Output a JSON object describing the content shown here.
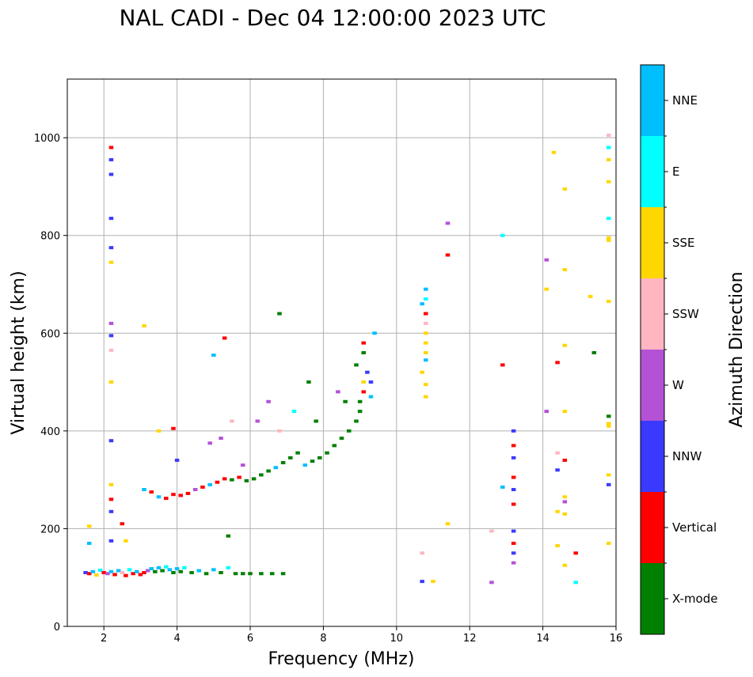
{
  "chart_data": {
    "type": "scatter",
    "title": "NAL CADI - Dec 04 12:00:00 2023 UTC",
    "xlabel": "Frequency (MHz)",
    "ylabel": "Virtual height (km)",
    "xlim": [
      1,
      16
    ],
    "ylim": [
      0,
      1120
    ],
    "xticks": [
      2,
      4,
      6,
      8,
      10,
      12,
      14,
      16
    ],
    "yticks": [
      0,
      200,
      400,
      600,
      800,
      1000
    ],
    "grid": true,
    "colorbar": {
      "title": "Azimuth Direction",
      "categories": [
        {
          "name": "X-mode",
          "color": "#008000"
        },
        {
          "name": "Vertical",
          "color": "#ff0000"
        },
        {
          "name": "NNW",
          "color": "#3a3aff"
        },
        {
          "name": "W",
          "color": "#b452d6"
        },
        {
          "name": "SSW",
          "color": "#ffb6c1"
        },
        {
          "name": "SSE",
          "color": "#ffd700"
        },
        {
          "name": "E",
          "color": "#00ffff"
        },
        {
          "name": "NNE",
          "color": "#00bfff"
        }
      ]
    },
    "points": [
      [
        1.5,
        110,
        "NNW"
      ],
      [
        1.6,
        108,
        "Vertical"
      ],
      [
        1.7,
        112,
        "NNE"
      ],
      [
        1.8,
        105,
        "SSE"
      ],
      [
        1.9,
        115,
        "E"
      ],
      [
        2.0,
        110,
        "Vertical"
      ],
      [
        2.1,
        108,
        "W"
      ],
      [
        2.2,
        112,
        "NNE"
      ],
      [
        2.3,
        106,
        "Vertical"
      ],
      [
        2.4,
        114,
        "NNE"
      ],
      [
        2.5,
        110,
        "SSW"
      ],
      [
        2.6,
        104,
        "Vertical"
      ],
      [
        2.7,
        116,
        "E"
      ],
      [
        2.8,
        108,
        "Vertical"
      ],
      [
        2.9,
        112,
        "NNE"
      ],
      [
        3.0,
        106,
        "Vertical"
      ],
      [
        3.1,
        110,
        "Vertical"
      ],
      [
        3.2,
        114,
        "W"
      ],
      [
        3.3,
        118,
        "NNE"
      ],
      [
        3.4,
        112,
        "X-mode"
      ],
      [
        3.5,
        120,
        "NNE"
      ],
      [
        3.6,
        114,
        "X-mode"
      ],
      [
        3.7,
        122,
        "E"
      ],
      [
        3.8,
        116,
        "NNE"
      ],
      [
        3.9,
        110,
        "X-mode"
      ],
      [
        4.0,
        118,
        "NNE"
      ],
      [
        4.1,
        112,
        "X-mode"
      ],
      [
        4.2,
        120,
        "E"
      ],
      [
        4.4,
        110,
        "X-mode"
      ],
      [
        4.6,
        114,
        "NNE"
      ],
      [
        4.8,
        108,
        "X-mode"
      ],
      [
        5.0,
        116,
        "NNE"
      ],
      [
        5.2,
        110,
        "X-mode"
      ],
      [
        5.4,
        120,
        "E"
      ],
      [
        5.6,
        108,
        "X-mode"
      ],
      [
        5.8,
        108,
        "X-mode"
      ],
      [
        6.0,
        108,
        "X-mode"
      ],
      [
        6.3,
        108,
        "X-mode"
      ],
      [
        6.6,
        108,
        "X-mode"
      ],
      [
        6.9,
        108,
        "X-mode"
      ],
      [
        2.6,
        175,
        "SSE"
      ],
      [
        1.6,
        205,
        "SSE"
      ],
      [
        2.5,
        210,
        "Vertical"
      ],
      [
        1.6,
        170,
        "NNE"
      ],
      [
        3.1,
        280,
        "NNE"
      ],
      [
        3.3,
        275,
        "Vertical"
      ],
      [
        3.5,
        265,
        "NNE"
      ],
      [
        3.7,
        262,
        "Vertical"
      ],
      [
        3.9,
        270,
        "Vertical"
      ],
      [
        4.1,
        268,
        "Vertical"
      ],
      [
        4.3,
        272,
        "Vertical"
      ],
      [
        4.5,
        280,
        "W"
      ],
      [
        4.7,
        285,
        "Vertical"
      ],
      [
        4.9,
        290,
        "NNE"
      ],
      [
        5.1,
        295,
        "Vertical"
      ],
      [
        5.3,
        302,
        "Vertical"
      ],
      [
        5.5,
        300,
        "X-mode"
      ],
      [
        5.7,
        305,
        "Vertical"
      ],
      [
        5.9,
        298,
        "X-mode"
      ],
      [
        6.1,
        302,
        "X-mode"
      ],
      [
        6.3,
        310,
        "X-mode"
      ],
      [
        6.5,
        318,
        "X-mode"
      ],
      [
        6.7,
        325,
        "NNE"
      ],
      [
        6.9,
        335,
        "X-mode"
      ],
      [
        7.1,
        345,
        "X-mode"
      ],
      [
        7.3,
        355,
        "X-mode"
      ],
      [
        7.5,
        330,
        "NNE"
      ],
      [
        7.7,
        338,
        "X-mode"
      ],
      [
        7.9,
        345,
        "X-mode"
      ],
      [
        8.1,
        355,
        "X-mode"
      ],
      [
        8.3,
        370,
        "X-mode"
      ],
      [
        8.5,
        385,
        "X-mode"
      ],
      [
        8.7,
        400,
        "X-mode"
      ],
      [
        8.9,
        420,
        "X-mode"
      ],
      [
        9.0,
        440,
        "X-mode"
      ],
      [
        9.0,
        460,
        "X-mode"
      ],
      [
        9.1,
        480,
        "Vertical"
      ],
      [
        9.1,
        500,
        "SSE"
      ],
      [
        9.2,
        520,
        "NNW"
      ],
      [
        9.1,
        560,
        "X-mode"
      ],
      [
        9.1,
        580,
        "Vertical"
      ],
      [
        9.3,
        470,
        "NNE"
      ],
      [
        9.3,
        500,
        "NNW"
      ],
      [
        3.5,
        400,
        "SSE"
      ],
      [
        3.9,
        405,
        "Vertical"
      ],
      [
        4.0,
        340,
        "NNW"
      ],
      [
        4.9,
        375,
        "W"
      ],
      [
        5.2,
        385,
        "W"
      ],
      [
        5.5,
        420,
        "SSW"
      ],
      [
        5.8,
        330,
        "W"
      ],
      [
        6.2,
        420,
        "W"
      ],
      [
        6.5,
        460,
        "W"
      ],
      [
        6.8,
        400,
        "SSW"
      ],
      [
        7.2,
        440,
        "E"
      ],
      [
        7.6,
        500,
        "X-mode"
      ],
      [
        7.8,
        420,
        "X-mode"
      ],
      [
        8.4,
        480,
        "W"
      ],
      [
        8.6,
        460,
        "X-mode"
      ],
      [
        8.9,
        535,
        "X-mode"
      ],
      [
        5.4,
        185,
        "X-mode"
      ],
      [
        5.0,
        555,
        "NNE"
      ],
      [
        5.3,
        590,
        "Vertical"
      ],
      [
        6.8,
        640,
        "X-mode"
      ],
      [
        3.1,
        615,
        "SSE"
      ],
      [
        9.4,
        600,
        "NNE"
      ],
      [
        2.2,
        980,
        "Vertical"
      ],
      [
        2.2,
        955,
        "NNW"
      ],
      [
        2.2,
        925,
        "NNW"
      ],
      [
        2.2,
        835,
        "NNW"
      ],
      [
        2.2,
        775,
        "NNW"
      ],
      [
        2.2,
        745,
        "SSE"
      ],
      [
        2.2,
        620,
        "W"
      ],
      [
        2.2,
        595,
        "NNW"
      ],
      [
        2.2,
        565,
        "SSW"
      ],
      [
        2.2,
        500,
        "SSE"
      ],
      [
        2.2,
        380,
        "NNW"
      ],
      [
        2.2,
        290,
        "SSE"
      ],
      [
        2.2,
        260,
        "Vertical"
      ],
      [
        2.2,
        235,
        "NNW"
      ],
      [
        2.2,
        175,
        "NNW"
      ],
      [
        10.8,
        690,
        "NNE"
      ],
      [
        10.8,
        670,
        "E"
      ],
      [
        10.8,
        640,
        "Vertical"
      ],
      [
        10.8,
        620,
        "SSW"
      ],
      [
        10.8,
        600,
        "SSE"
      ],
      [
        10.8,
        580,
        "SSE"
      ],
      [
        10.8,
        560,
        "SSE"
      ],
      [
        10.8,
        545,
        "NNE"
      ],
      [
        10.8,
        495,
        "SSE"
      ],
      [
        10.8,
        470,
        "SSE"
      ],
      [
        10.7,
        660,
        "NNE"
      ],
      [
        10.7,
        520,
        "SSE"
      ],
      [
        10.7,
        150,
        "SSW"
      ],
      [
        10.7,
        92,
        "NNW"
      ],
      [
        11.0,
        92,
        "SSE"
      ],
      [
        11.4,
        825,
        "W"
      ],
      [
        11.4,
        760,
        "Vertical"
      ],
      [
        11.4,
        210,
        "SSE"
      ],
      [
        12.9,
        800,
        "E"
      ],
      [
        12.9,
        535,
        "Vertical"
      ],
      [
        12.9,
        285,
        "NNE"
      ],
      [
        12.6,
        195,
        "SSW"
      ],
      [
        12.6,
        90,
        "W"
      ],
      [
        13.2,
        400,
        "NNW"
      ],
      [
        13.2,
        370,
        "Vertical"
      ],
      [
        13.2,
        345,
        "NNW"
      ],
      [
        13.2,
        305,
        "Vertical"
      ],
      [
        13.2,
        280,
        "NNW"
      ],
      [
        13.2,
        250,
        "Vertical"
      ],
      [
        13.2,
        195,
        "NNW"
      ],
      [
        13.2,
        170,
        "Vertical"
      ],
      [
        13.2,
        150,
        "NNW"
      ],
      [
        13.2,
        130,
        "W"
      ],
      [
        14.1,
        750,
        "W"
      ],
      [
        14.1,
        690,
        "SSE"
      ],
      [
        14.1,
        440,
        "W"
      ],
      [
        14.3,
        970,
        "SSE"
      ],
      [
        14.4,
        540,
        "Vertical"
      ],
      [
        14.4,
        355,
        "SSW"
      ],
      [
        14.4,
        320,
        "NNW"
      ],
      [
        14.4,
        235,
        "SSE"
      ],
      [
        14.4,
        165,
        "SSE"
      ],
      [
        14.6,
        895,
        "SSE"
      ],
      [
        14.6,
        730,
        "SSE"
      ],
      [
        14.6,
        575,
        "SSE"
      ],
      [
        14.6,
        440,
        "SSE"
      ],
      [
        14.6,
        340,
        "Vertical"
      ],
      [
        14.6,
        265,
        "SSE"
      ],
      [
        14.6,
        255,
        "W"
      ],
      [
        14.6,
        230,
        "SSE"
      ],
      [
        14.6,
        125,
        "SSE"
      ],
      [
        14.9,
        150,
        "Vertical"
      ],
      [
        14.9,
        90,
        "E"
      ],
      [
        15.3,
        675,
        "SSE"
      ],
      [
        15.4,
        560,
        "X-mode"
      ],
      [
        15.8,
        1005,
        "SSW"
      ],
      [
        15.8,
        980,
        "E"
      ],
      [
        15.8,
        955,
        "SSE"
      ],
      [
        15.8,
        910,
        "SSE"
      ],
      [
        15.8,
        835,
        "E"
      ],
      [
        15.8,
        795,
        "SSE"
      ],
      [
        15.8,
        790,
        "SSE"
      ],
      [
        15.8,
        665,
        "SSE"
      ],
      [
        15.8,
        430,
        "X-mode"
      ],
      [
        15.8,
        415,
        "SSE"
      ],
      [
        15.8,
        410,
        "SSE"
      ],
      [
        15.8,
        310,
        "SSE"
      ],
      [
        15.8,
        290,
        "NNW"
      ],
      [
        15.8,
        170,
        "SSE"
      ]
    ]
  }
}
